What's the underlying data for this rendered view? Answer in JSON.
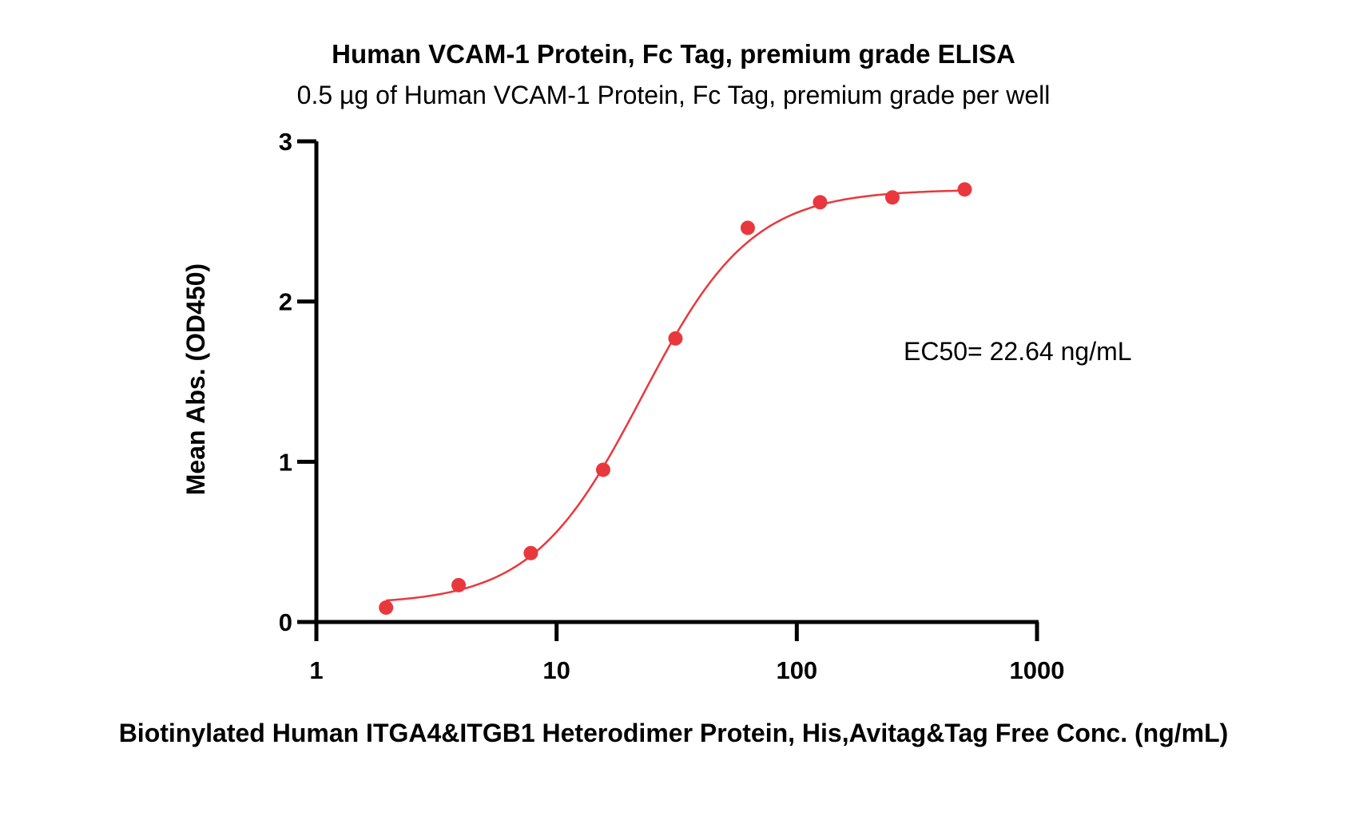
{
  "chart_data": {
    "type": "scatter",
    "title": "Human VCAM-1 Protein, Fc Tag, premium grade ELISA",
    "subtitle": "0.5 µg of Human VCAM-1 Protein, Fc Tag, premium grade per well",
    "xlabel": "Biotinylated Human ITGA4&ITGB1 Heterodimer Protein, His,Avitag&Tag Free Conc. (ng/mL)",
    "ylabel": "Mean Abs. (OD450)",
    "x_scale": "log",
    "xlim": [
      1,
      1000
    ],
    "ylim": [
      0,
      3
    ],
    "x_ticks": [
      1,
      10,
      100,
      1000
    ],
    "x_tick_labels": [
      "1",
      "10",
      "100",
      "1000"
    ],
    "y_ticks": [
      0,
      1,
      2,
      3
    ],
    "y_tick_labels": [
      "0",
      "1",
      "2",
      "3"
    ],
    "grid": false,
    "color": "#e8383d",
    "series": [
      {
        "x": [
          1.95,
          3.91,
          7.81,
          15.63,
          31.25,
          62.5,
          125,
          250,
          500
        ],
        "y": [
          0.09,
          0.23,
          0.43,
          0.95,
          1.77,
          2.46,
          2.62,
          2.65,
          2.7
        ]
      }
    ],
    "fit_curve": {
      "model": "4PL",
      "bottom": 0.11,
      "top": 2.7,
      "ec50": 22.64,
      "hill": 1.9,
      "x_range": [
        1.95,
        500
      ]
    },
    "annotation": "EC50= 22.64 ng/mL"
  }
}
